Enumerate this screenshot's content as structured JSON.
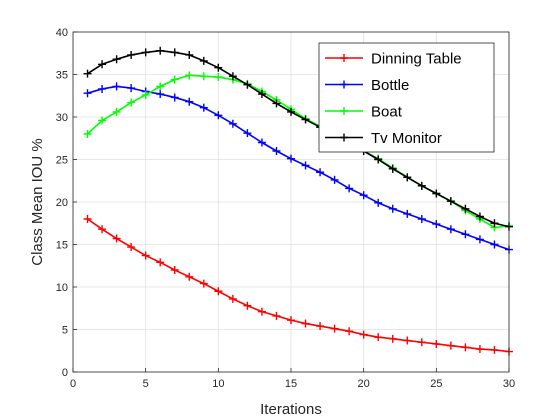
{
  "chart_data": {
    "type": "line",
    "title": "",
    "xlabel": "Iterations",
    "ylabel": "Class Mean IOU %",
    "xlim": [
      0,
      30
    ],
    "ylim": [
      0,
      40
    ],
    "x_ticks": [
      0,
      5,
      10,
      15,
      20,
      25,
      30
    ],
    "y_ticks": [
      0,
      5,
      10,
      15,
      20,
      25,
      30,
      35,
      40
    ],
    "grid": true,
    "legend_position": "top-right",
    "marker": "plus",
    "x": [
      1,
      2,
      3,
      4,
      5,
      6,
      7,
      8,
      9,
      10,
      11,
      12,
      13,
      14,
      15,
      16,
      17,
      18,
      19,
      20,
      21,
      22,
      23,
      24,
      25,
      26,
      27,
      28,
      29,
      30
    ],
    "series": [
      {
        "name": "Dinning Table",
        "color": "#ff0000",
        "values": [
          18.0,
          16.8,
          15.7,
          14.7,
          13.7,
          12.9,
          12.0,
          11.2,
          10.4,
          9.5,
          8.6,
          7.8,
          7.1,
          6.6,
          6.1,
          5.7,
          5.4,
          5.1,
          4.8,
          4.4,
          4.1,
          3.9,
          3.7,
          3.5,
          3.3,
          3.1,
          2.9,
          2.7,
          2.6,
          2.4
        ]
      },
      {
        "name": "Bottle",
        "color": "#0000ff",
        "values": [
          32.8,
          33.3,
          33.6,
          33.4,
          33.0,
          32.7,
          32.3,
          31.8,
          31.1,
          30.2,
          29.2,
          28.1,
          27.0,
          26.0,
          25.1,
          24.3,
          23.5,
          22.6,
          21.6,
          20.8,
          19.9,
          19.2,
          18.6,
          18.0,
          17.4,
          16.8,
          16.2,
          15.6,
          15.0,
          14.4
        ]
      },
      {
        "name": "Boat",
        "color": "#00ff00",
        "values": [
          28.0,
          29.6,
          30.6,
          31.7,
          32.6,
          33.6,
          34.4,
          34.9,
          34.8,
          34.7,
          34.4,
          33.9,
          33.0,
          32.0,
          30.9,
          29.8,
          28.9,
          28.0,
          27.0,
          26.0,
          25.1,
          24.0,
          22.9,
          21.9,
          21.0,
          20.1,
          19.0,
          18.0,
          17.0,
          17.2
        ]
      },
      {
        "name": "Tv Monitor",
        "color": "#000000",
        "values": [
          35.1,
          36.2,
          36.8,
          37.3,
          37.6,
          37.8,
          37.6,
          37.3,
          36.6,
          35.8,
          34.8,
          33.8,
          32.7,
          31.6,
          30.6,
          29.7,
          28.8,
          27.9,
          27.0,
          26.0,
          25.0,
          23.9,
          22.9,
          21.9,
          21.0,
          20.1,
          19.2,
          18.3,
          17.5,
          17.1
        ]
      }
    ]
  }
}
